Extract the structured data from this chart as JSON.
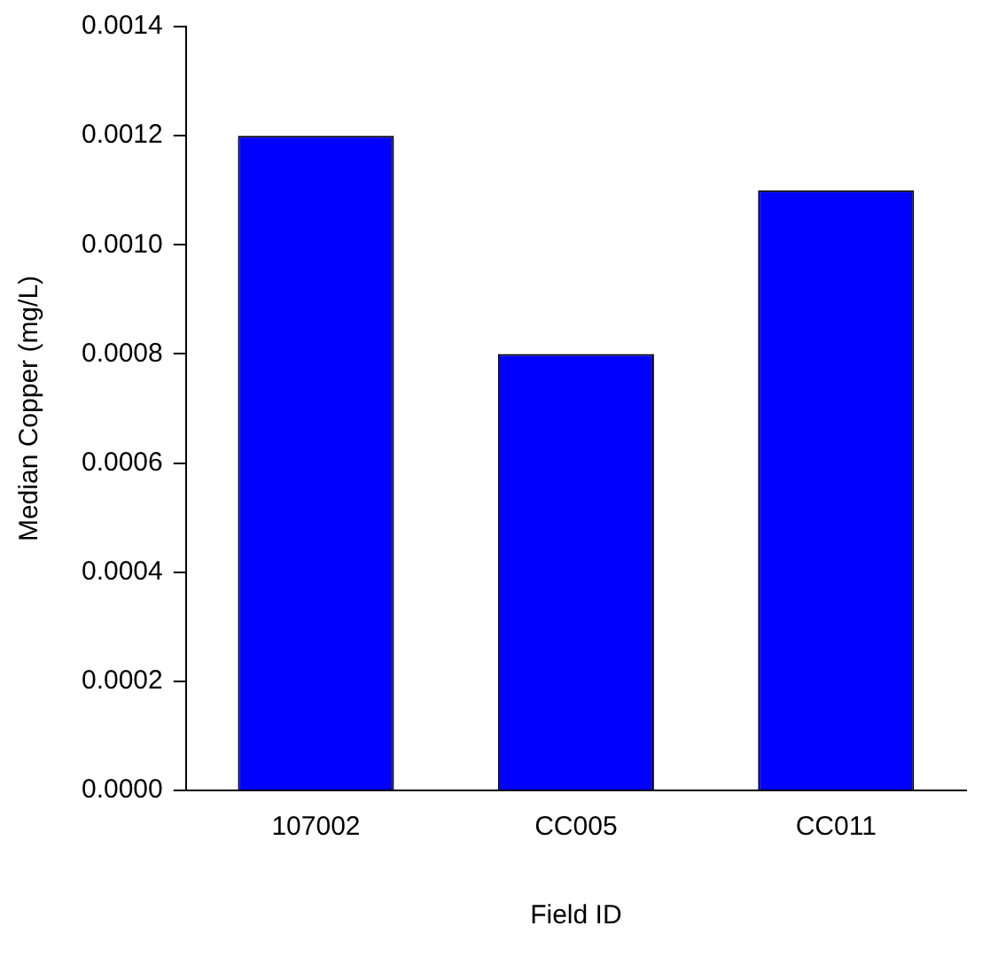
{
  "chart_data": {
    "type": "bar",
    "xlabel": "Field ID",
    "ylabel": "Median Copper (mg/L)",
    "categories": [
      "107002",
      "CC005",
      "CC011"
    ],
    "values": [
      0.0012,
      0.0008,
      0.0011
    ],
    "color": "#0000ff",
    "ylim": [
      0,
      0.0014
    ],
    "yticks": [
      {
        "value": 0,
        "label": "0.0000"
      },
      {
        "value": 0.0002,
        "label": "0.0002"
      },
      {
        "value": 0.0004,
        "label": "0.0004"
      },
      {
        "value": 0.0006,
        "label": "0.0006"
      },
      {
        "value": 0.0008,
        "label": "0.0008"
      },
      {
        "value": 0.001,
        "label": "0.0010"
      },
      {
        "value": 0.0012,
        "label": "0.0012"
      },
      {
        "value": 0.0014,
        "label": "0.0014"
      }
    ],
    "grid": false,
    "legend": false
  }
}
